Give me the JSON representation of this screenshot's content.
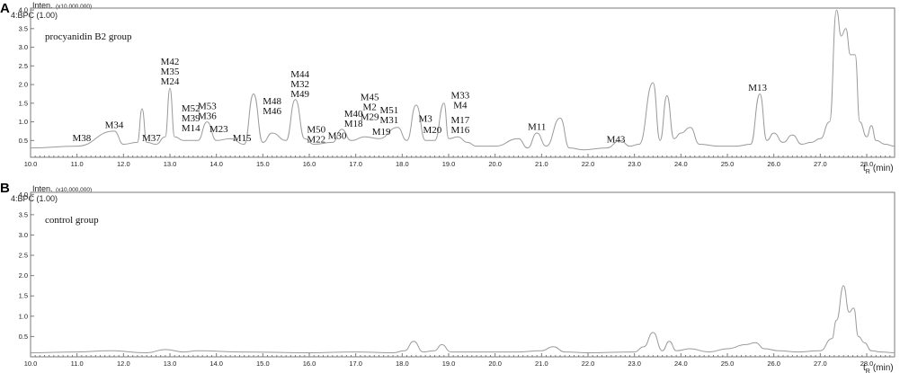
{
  "chart_data": [
    {
      "type": "line",
      "panel_label": "A",
      "title": "procyanidin B2 group",
      "intensity_label": "Inten.",
      "intensity_scale": "(x10,000,000)",
      "channel": "4:BPC (1.00)",
      "x_label_main": "t",
      "x_label_sub": "R",
      "x_label_unit": "(min)",
      "xlim": [
        10.0,
        28.6
      ],
      "ylim": [
        0.05,
        4.05
      ],
      "x_ticks": [
        "10.0",
        "11.0",
        "12.0",
        "13.0",
        "14.0",
        "15.0",
        "16.0",
        "17.0",
        "18.0",
        "19.0",
        "20.0",
        "21.0",
        "22.0",
        "23.0",
        "24.0",
        "25.0",
        "26.0",
        "27.0",
        "28.0"
      ],
      "y_ticks": [
        "0.5",
        "1.0",
        "1.5",
        "2.0",
        "2.5",
        "3.0",
        "3.5",
        "4.0"
      ],
      "series": [
        {
          "x": [
            10.0,
            11.0,
            11.8,
            12.0,
            12.3,
            12.4,
            12.5,
            12.7,
            12.9,
            13.0,
            13.1,
            13.3,
            13.6,
            13.8,
            14.0,
            14.3,
            14.6,
            14.8,
            15.0,
            15.2,
            15.5,
            15.7,
            15.9,
            16.1,
            16.5,
            16.7,
            16.9,
            17.2,
            17.5,
            17.9,
            18.1,
            18.3,
            18.5,
            18.7,
            18.9,
            19.0,
            19.2,
            19.4,
            19.6,
            20.0,
            20.5,
            20.7,
            20.9,
            21.1,
            21.4,
            21.6,
            21.9,
            22.4,
            22.7,
            22.9,
            23.1,
            23.4,
            23.55,
            23.7,
            23.85,
            24.0,
            24.2,
            24.4,
            24.8,
            25.2,
            25.5,
            25.7,
            25.85,
            26.0,
            26.2,
            26.4,
            26.6,
            26.8,
            27.0,
            27.2,
            27.35,
            27.45,
            27.55,
            27.65,
            27.75,
            27.85,
            28.0,
            28.1,
            28.2,
            28.4,
            28.6
          ],
          "y": [
            0.3,
            0.35,
            0.75,
            0.4,
            0.45,
            1.35,
            0.45,
            0.4,
            0.6,
            1.9,
            0.6,
            0.5,
            0.5,
            1.0,
            0.5,
            0.55,
            0.4,
            1.75,
            0.45,
            0.7,
            0.5,
            1.6,
            0.55,
            0.4,
            0.45,
            0.8,
            0.5,
            0.6,
            0.55,
            0.85,
            0.5,
            1.45,
            0.5,
            0.5,
            1.5,
            0.55,
            0.6,
            0.45,
            0.35,
            0.35,
            0.55,
            0.3,
            0.7,
            0.35,
            1.1,
            0.3,
            0.25,
            0.3,
            0.5,
            0.35,
            0.4,
            2.05,
            0.5,
            1.7,
            0.55,
            0.7,
            0.85,
            0.4,
            0.35,
            0.35,
            0.4,
            1.75,
            0.5,
            0.7,
            0.45,
            0.65,
            0.4,
            0.45,
            0.55,
            1.0,
            4.0,
            3.3,
            3.5,
            2.8,
            2.8,
            1.0,
            0.6,
            0.9,
            0.5,
            0.4,
            0.35
          ]
        }
      ],
      "annotations": [
        {
          "x": 11.1,
          "y": 0.43,
          "lines": [
            "M38"
          ]
        },
        {
          "x": 11.8,
          "y": 0.78,
          "lines": [
            "M34"
          ]
        },
        {
          "x": 12.6,
          "y": 0.43,
          "lines": [
            "M37"
          ]
        },
        {
          "x": 13.0,
          "y": 1.95,
          "lines": [
            "M42",
            "M35",
            "M24"
          ]
        },
        {
          "x": 13.45,
          "y": 0.7,
          "lines": [
            "M52",
            "M39",
            "M14"
          ]
        },
        {
          "x": 13.8,
          "y": 1.02,
          "lines": [
            "M53",
            "M36"
          ]
        },
        {
          "x": 14.05,
          "y": 0.68,
          "lines": [
            "M23"
          ]
        },
        {
          "x": 14.55,
          "y": 0.43,
          "lines": [
            "M15"
          ]
        },
        {
          "x": 15.2,
          "y": 1.16,
          "lines": [
            "M48",
            "M46"
          ]
        },
        {
          "x": 15.8,
          "y": 1.62,
          "lines": [
            "M44",
            "M32",
            "M49"
          ]
        },
        {
          "x": 16.15,
          "y": 0.4,
          "lines": [
            "M50",
            "M22"
          ]
        },
        {
          "x": 16.6,
          "y": 0.5,
          "lines": [
            "M30"
          ]
        },
        {
          "x": 16.95,
          "y": 0.82,
          "lines": [
            "M40",
            "M18"
          ]
        },
        {
          "x": 17.3,
          "y": 1.0,
          "lines": [
            "M45",
            "M2",
            "M29"
          ]
        },
        {
          "x": 17.72,
          "y": 0.92,
          "lines": [
            "M51",
            "M31"
          ]
        },
        {
          "x": 17.55,
          "y": 0.6,
          "lines": [
            "M19"
          ]
        },
        {
          "x": 18.5,
          "y": 0.95,
          "lines": [
            "M3"
          ]
        },
        {
          "x": 18.65,
          "y": 0.65,
          "lines": [
            "M20"
          ]
        },
        {
          "x": 19.25,
          "y": 1.32,
          "lines": [
            "M33",
            "M4"
          ]
        },
        {
          "x": 19.25,
          "y": 0.65,
          "lines": [
            "M17",
            "M16"
          ]
        },
        {
          "x": 20.9,
          "y": 0.74,
          "lines": [
            "M11"
          ]
        },
        {
          "x": 22.6,
          "y": 0.4,
          "lines": [
            "M43"
          ]
        },
        {
          "x": 25.65,
          "y": 1.78,
          "lines": [
            "M13"
          ]
        }
      ]
    },
    {
      "type": "line",
      "panel_label": "B",
      "title": "control group",
      "intensity_label": "Inten.",
      "intensity_scale": "(x10,000,000)",
      "channel": "4:BPC (1.00)",
      "x_label_main": "t",
      "x_label_sub": "R",
      "x_label_unit": "(min)",
      "xlim": [
        10.0,
        28.6
      ],
      "ylim": [
        0.0,
        4.05
      ],
      "x_ticks": [
        "10.0",
        "11.0",
        "12.0",
        "13.0",
        "14.0",
        "15.0",
        "16.0",
        "17.0",
        "18.0",
        "19.0",
        "20.0",
        "21.0",
        "22.0",
        "23.0",
        "24.0",
        "25.0",
        "26.0",
        "27.0",
        "28.0"
      ],
      "y_ticks": [
        "0.5",
        "1.0",
        "1.5",
        "2.0",
        "2.5",
        "3.0",
        "3.5",
        "4.0"
      ],
      "series": [
        {
          "x": [
            10.0,
            11.0,
            11.7,
            12.5,
            12.9,
            13.3,
            13.6,
            14.5,
            16.0,
            17.0,
            17.8,
            18.05,
            18.25,
            18.45,
            18.7,
            18.85,
            19.05,
            19.5,
            20.5,
            21.0,
            21.25,
            21.5,
            22.0,
            23.0,
            23.2,
            23.4,
            23.6,
            23.75,
            23.9,
            24.2,
            24.6,
            25.0,
            25.4,
            25.6,
            25.8,
            26.1,
            26.5,
            27.0,
            27.25,
            27.35,
            27.5,
            27.62,
            27.72,
            27.82,
            27.95,
            28.1,
            28.3,
            28.6
          ],
          "y": [
            0.1,
            0.12,
            0.15,
            0.1,
            0.18,
            0.12,
            0.15,
            0.12,
            0.1,
            0.12,
            0.1,
            0.15,
            0.38,
            0.12,
            0.15,
            0.3,
            0.12,
            0.12,
            0.12,
            0.15,
            0.25,
            0.12,
            0.1,
            0.12,
            0.25,
            0.6,
            0.15,
            0.38,
            0.15,
            0.2,
            0.12,
            0.2,
            0.3,
            0.35,
            0.2,
            0.15,
            0.12,
            0.15,
            0.45,
            0.9,
            1.75,
            1.1,
            1.2,
            0.5,
            0.35,
            0.15,
            0.12,
            0.1
          ]
        }
      ],
      "annotations": []
    }
  ]
}
